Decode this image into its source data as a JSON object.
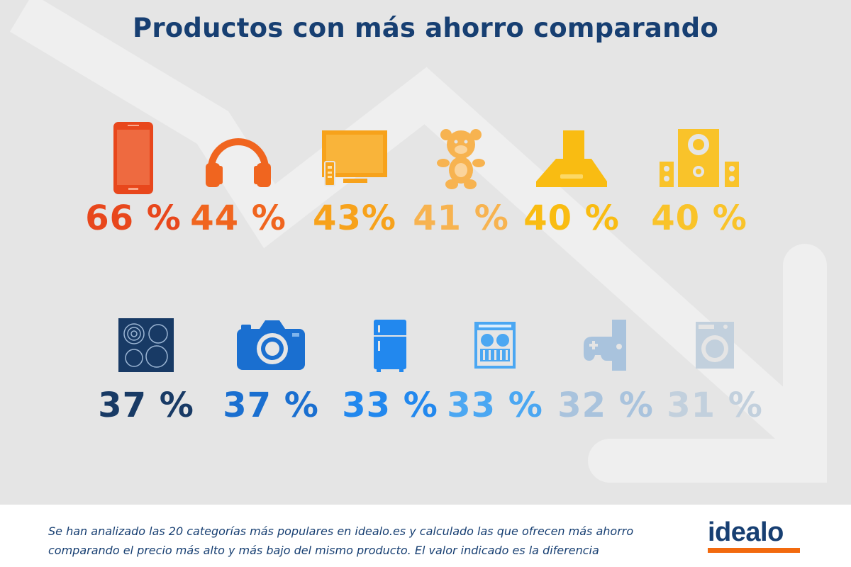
{
  "title": "Productos con más ahorro comparando",
  "items": [
    {
      "name": "smartphone",
      "icon": "smartphone-icon",
      "value": "66 %",
      "color": "#e8471c"
    },
    {
      "name": "headphones",
      "icon": "headphones-icon",
      "value": "44 %",
      "color": "#f0651f"
    },
    {
      "name": "tv",
      "icon": "tv-icon",
      "value": "43%",
      "color": "#f7a21b"
    },
    {
      "name": "toy",
      "icon": "teddy-bear-icon",
      "value": "41 %",
      "color": "#f7b350"
    },
    {
      "name": "hood",
      "icon": "extractor-hood-icon",
      "value": "40 %",
      "color": "#f9bc12"
    },
    {
      "name": "speakers",
      "icon": "speakers-icon",
      "value": "40 %",
      "color": "#f9c32a"
    },
    {
      "name": "cooktop",
      "icon": "cooktop-icon",
      "value": "37 %",
      "color": "#183a65"
    },
    {
      "name": "camera",
      "icon": "camera-icon",
      "value": "37 %",
      "color": "#1a6fd0"
    },
    {
      "name": "fridge",
      "icon": "fridge-icon",
      "value": "33 %",
      "color": "#2288ee"
    },
    {
      "name": "dishwasher",
      "icon": "dishwasher-icon",
      "value": "33 %",
      "color": "#4ba7f2"
    },
    {
      "name": "gamepad",
      "icon": "gamepad-icon",
      "value": "32 %",
      "color": "#a9c3dd"
    },
    {
      "name": "washer",
      "icon": "washing-machine-icon",
      "value": "31 %",
      "color": "#c2d0dd"
    }
  ],
  "footer": {
    "note_line1": "Se han analizado las 20 categorías más populares en idealo.es y calculado las que ofrecen más ahorro",
    "note_line2": "comparando el precio más alto y más bajo del mismo producto. El valor indicado es la diferencia"
  },
  "logo": {
    "text": "idealo",
    "accent_color": "#f26a0e"
  }
}
